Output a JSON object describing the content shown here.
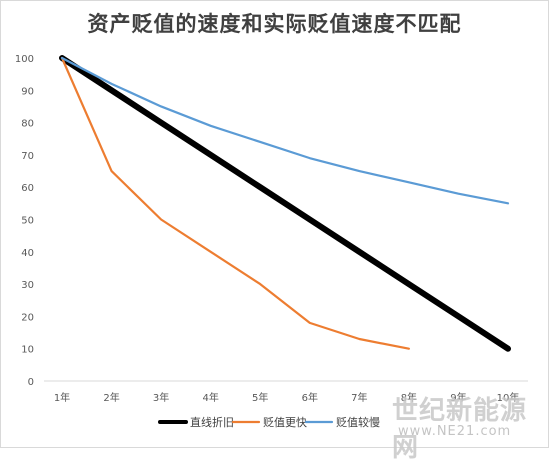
{
  "watermark": {
    "line1": "世纪新能源网",
    "line2": "www.NE21.com"
  },
  "chart_data": {
    "type": "line",
    "title": "资产贬值的速度和实际贬值速度不匹配",
    "xlabel": "",
    "ylabel": "",
    "categories": [
      "1年",
      "2年",
      "3年",
      "4年",
      "5年",
      "6年",
      "7年",
      "8年",
      "9年",
      "10年"
    ],
    "ylim": [
      0,
      100
    ],
    "yticks": [
      0,
      10,
      20,
      30,
      40,
      50,
      60,
      70,
      80,
      90,
      100
    ],
    "grid": false,
    "legend_position": "bottom",
    "series": [
      {
        "name": "直线折旧",
        "color": "#000000",
        "values": [
          100,
          90,
          80,
          70,
          60,
          50,
          40,
          30,
          20,
          10
        ]
      },
      {
        "name": "贬值更快",
        "color": "#ED7D31",
        "values": [
          100,
          65,
          50,
          40,
          30,
          18,
          13,
          10,
          null,
          null
        ]
      },
      {
        "name": "贬值较慢",
        "color": "#5B9BD5",
        "values": [
          100,
          92,
          85,
          79,
          74,
          69,
          65,
          61.5,
          58,
          55
        ]
      }
    ]
  }
}
